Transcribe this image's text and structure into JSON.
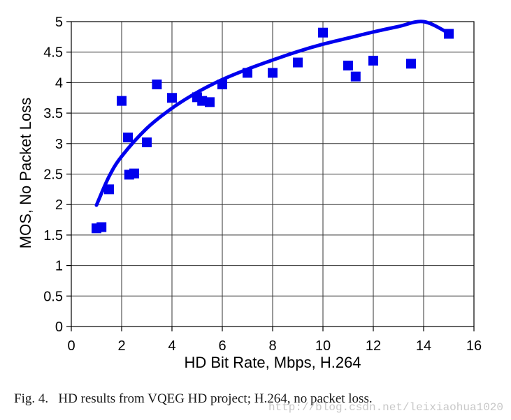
{
  "chart_data": {
    "type": "scatter",
    "title": "",
    "xlabel": "HD Bit Rate, Mbps, H.264",
    "ylabel": "MOS, No Packet Loss",
    "xlim": [
      0,
      16
    ],
    "ylim": [
      0,
      5
    ],
    "x_ticks": [
      "0",
      "2",
      "4",
      "6",
      "8",
      "10",
      "12",
      "14",
      "16"
    ],
    "y_ticks": [
      "0",
      "0.5",
      "1",
      "1.5",
      "2",
      "2.5",
      "3",
      "3.5",
      "4",
      "4.5",
      "5"
    ],
    "grid": true,
    "marker_color": "#0000ee",
    "series": [
      {
        "marker": "square",
        "points": [
          {
            "x": 1.0,
            "y": 1.61
          },
          {
            "x": 1.2,
            "y": 1.63
          },
          {
            "x": 1.5,
            "y": 2.25
          },
          {
            "x": 2.0,
            "y": 3.7
          },
          {
            "x": 2.25,
            "y": 3.1
          },
          {
            "x": 2.3,
            "y": 2.49
          },
          {
            "x": 2.5,
            "y": 2.51
          },
          {
            "x": 3.0,
            "y": 3.02
          },
          {
            "x": 3.4,
            "y": 3.97
          },
          {
            "x": 4.0,
            "y": 3.75
          },
          {
            "x": 5.0,
            "y": 3.76
          },
          {
            "x": 5.2,
            "y": 3.7
          },
          {
            "x": 5.5,
            "y": 3.68
          },
          {
            "x": 6.0,
            "y": 3.97
          },
          {
            "x": 7.0,
            "y": 4.16
          },
          {
            "x": 8.0,
            "y": 4.16
          },
          {
            "x": 9.0,
            "y": 4.33
          },
          {
            "x": 10.0,
            "y": 4.82
          },
          {
            "x": 11.0,
            "y": 4.28
          },
          {
            "x": 11.3,
            "y": 4.1
          },
          {
            "x": 12.0,
            "y": 4.36
          },
          {
            "x": 13.5,
            "y": 4.31
          },
          {
            "x": 15.0,
            "y": 4.8
          }
        ]
      },
      {
        "type": "line",
        "x": [
          1,
          1.5,
          2,
          3,
          4,
          5,
          6,
          7,
          8,
          9,
          10,
          11,
          12,
          13,
          14,
          15
        ],
        "y": [
          1.99,
          2.46,
          2.79,
          3.25,
          3.58,
          3.84,
          4.05,
          4.22,
          4.37,
          4.51,
          4.63,
          4.73,
          4.83,
          4.92,
          5.0,
          4.81
        ]
      }
    ]
  },
  "caption": {
    "text": "Fig. 4.   HD results from VQEG HD project; H.264, no packet loss."
  },
  "watermark": {
    "text": "http://blog.csdn.net/leixiaohua1020"
  }
}
